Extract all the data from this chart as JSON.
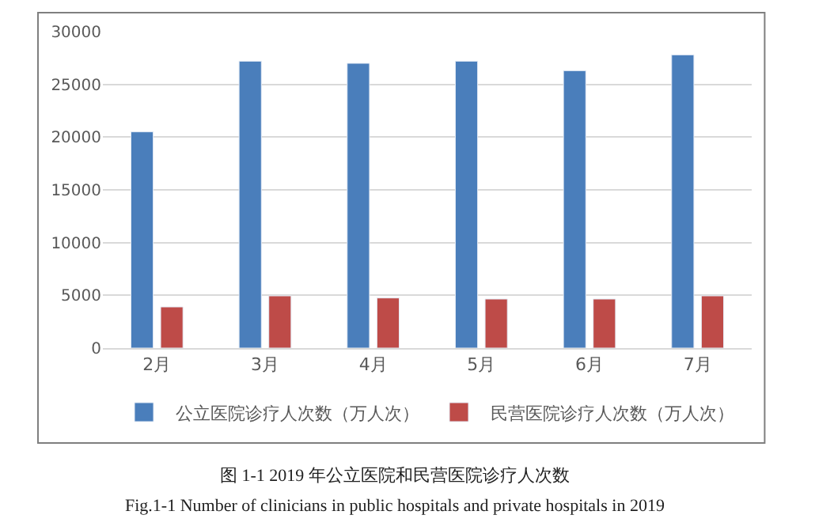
{
  "chart_data": {
    "type": "bar",
    "categories": [
      "2月",
      "3月",
      "4月",
      "5月",
      "6月",
      "7月"
    ],
    "series": [
      {
        "name": "公立医院诊疗人次数（万人次）",
        "color": "#4a7ebb",
        "values": [
          20500,
          27200,
          27000,
          27200,
          26300,
          27800
        ]
      },
      {
        "name": "民营医院诊疗人次数（万人次）",
        "color": "#be4b48",
        "values": [
          3900,
          4950,
          4750,
          4650,
          4650,
          4950
        ]
      }
    ],
    "ylim": [
      0,
      30000
    ],
    "yticks": [
      0,
      5000,
      10000,
      15000,
      20000,
      25000,
      30000
    ],
    "grid": "y",
    "legend": "bottom",
    "annotations": [
      "图 1-1 2019 年公立医院和民营医院诊疗人次数",
      "Fig.1-1 Number of clinicians in public hospitals and private hospitals in 2019"
    ]
  }
}
